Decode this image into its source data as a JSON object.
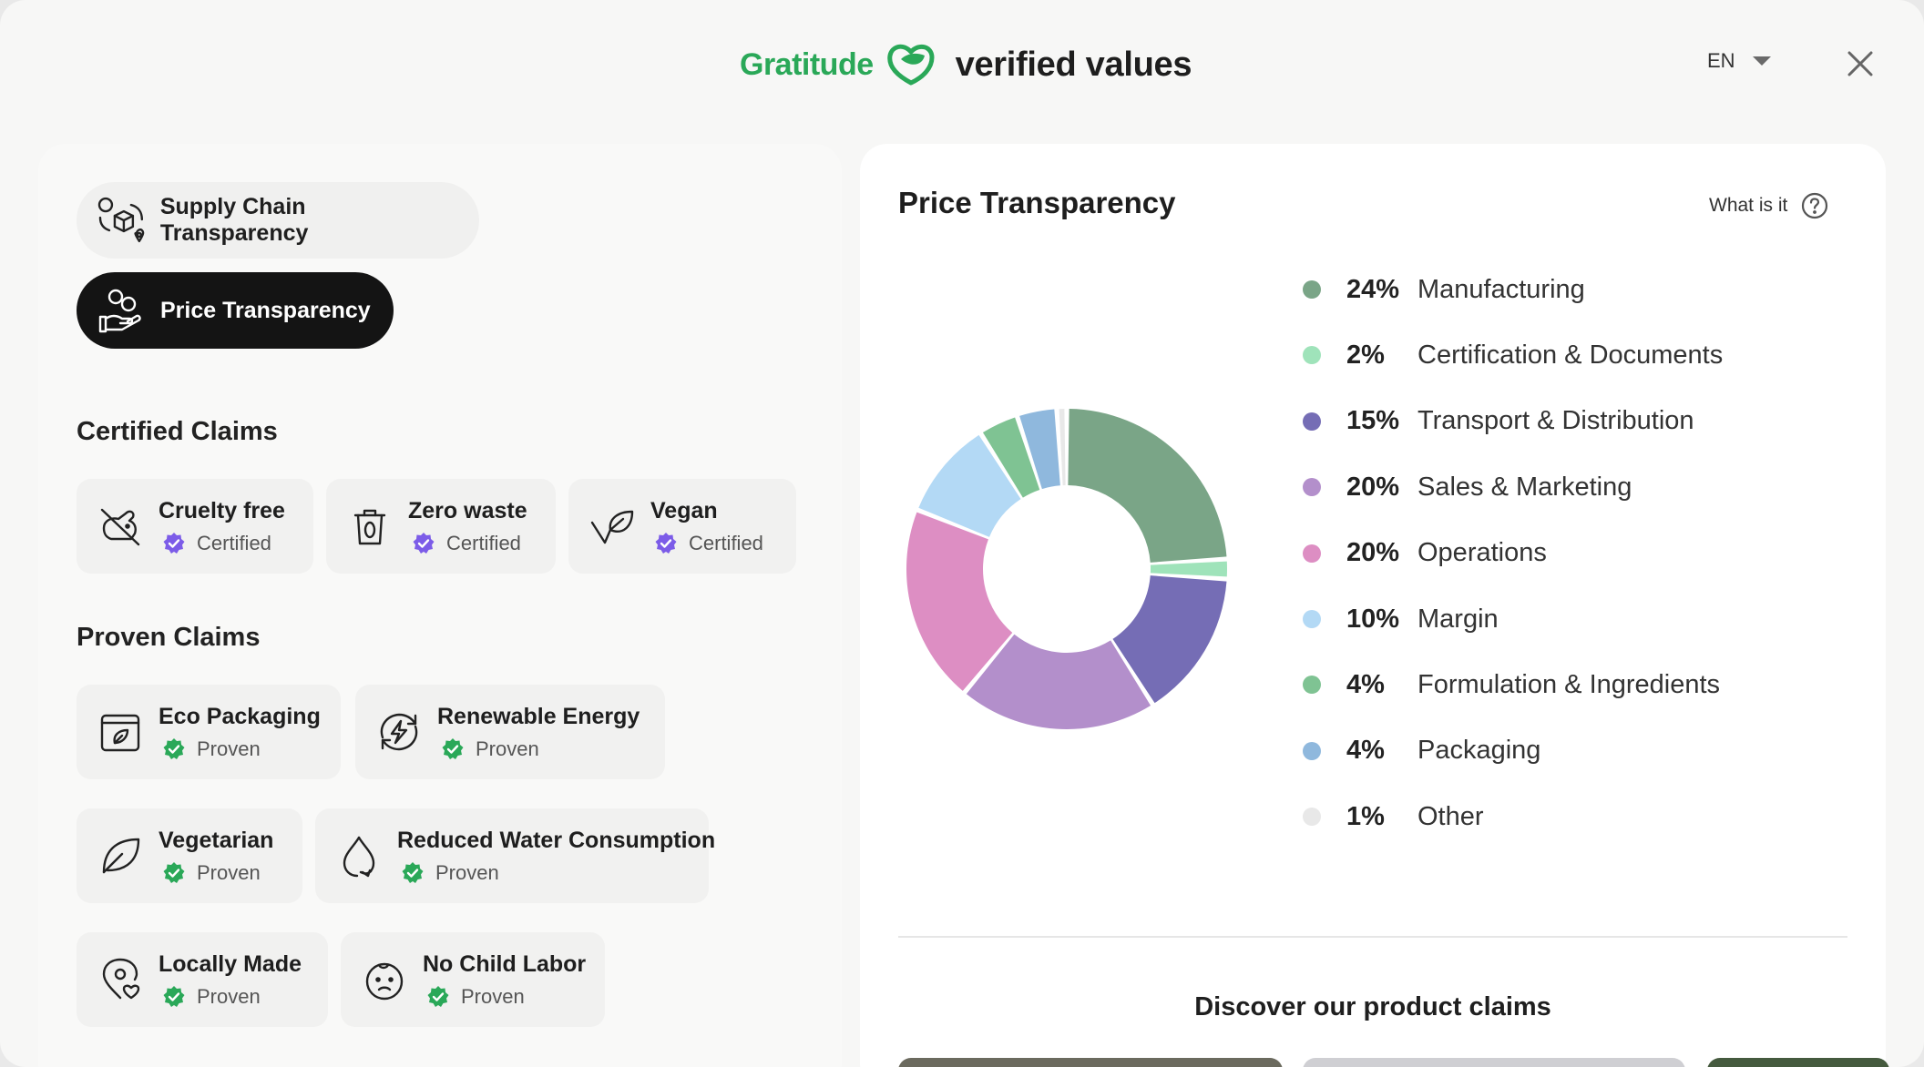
{
  "header": {
    "brand_name": "Gratitude",
    "tagline": "verified values",
    "language": "EN"
  },
  "tabs": [
    {
      "label": "Supply Chain Transparency",
      "icon": "box-location-icon",
      "active": false
    },
    {
      "label": "Price Transparency",
      "icon": "hand-coins-icon",
      "active": true
    }
  ],
  "certified": {
    "title": "Certified Claims",
    "items": [
      {
        "name": "Cruelty free",
        "status": "Certified",
        "icon": "no-rabbit-icon"
      },
      {
        "name": "Zero waste",
        "status": "Certified",
        "icon": "trash-zero-icon"
      },
      {
        "name": "Vegan",
        "status": "Certified",
        "icon": "leaf-v-icon"
      }
    ]
  },
  "proven": {
    "title": "Proven Claims",
    "items": [
      {
        "name": "Eco Packaging",
        "status": "Proven",
        "icon": "eco-box-icon"
      },
      {
        "name": "Renewable Energy",
        "status": "Proven",
        "icon": "bolt-cycle-icon"
      },
      {
        "name": "Vegetarian",
        "status": "Proven",
        "icon": "leaf-icon"
      },
      {
        "name": "Reduced Water Consumption",
        "status": "Proven",
        "icon": "water-drop-icon"
      },
      {
        "name": "Locally Made",
        "status": "Proven",
        "icon": "location-heart-icon"
      },
      {
        "name": "No Child Labor",
        "status": "Proven",
        "icon": "child-face-icon"
      }
    ]
  },
  "price": {
    "title": "Price Transparency",
    "help_label": "What is it"
  },
  "chart_data": {
    "type": "pie",
    "donut": true,
    "slices": [
      {
        "label": "Manufacturing",
        "value": 24,
        "pct_label": "24%",
        "color": "#7aa587"
      },
      {
        "label": "Certification & Documents",
        "value": 2,
        "pct_label": "2%",
        "color": "#9fe3ba"
      },
      {
        "label": "Transport & Distribution",
        "value": 15,
        "pct_label": "15%",
        "color": "#756db5"
      },
      {
        "label": "Sales & Marketing",
        "value": 20,
        "pct_label": "20%",
        "color": "#b38fcb"
      },
      {
        "label": "Operations",
        "value": 20,
        "pct_label": "20%",
        "color": "#dd8ec3"
      },
      {
        "label": "Margin",
        "value": 10,
        "pct_label": "10%",
        "color": "#b3d9f5"
      },
      {
        "label": "Formulation & Ingredients",
        "value": 4,
        "pct_label": "4%",
        "color": "#7fc393"
      },
      {
        "label": "Packaging",
        "value": 4,
        "pct_label": "4%",
        "color": "#8fb8dd"
      },
      {
        "label": "Other",
        "value": 1,
        "pct_label": "1%",
        "color": "#e8e8e8"
      }
    ],
    "legend_position": "right"
  },
  "discover": {
    "title": "Discover our product claims"
  },
  "colors": {
    "brand_green": "#2aa858",
    "certified_badge": "#7c5ce8",
    "proven_badge": "#2aa858"
  }
}
